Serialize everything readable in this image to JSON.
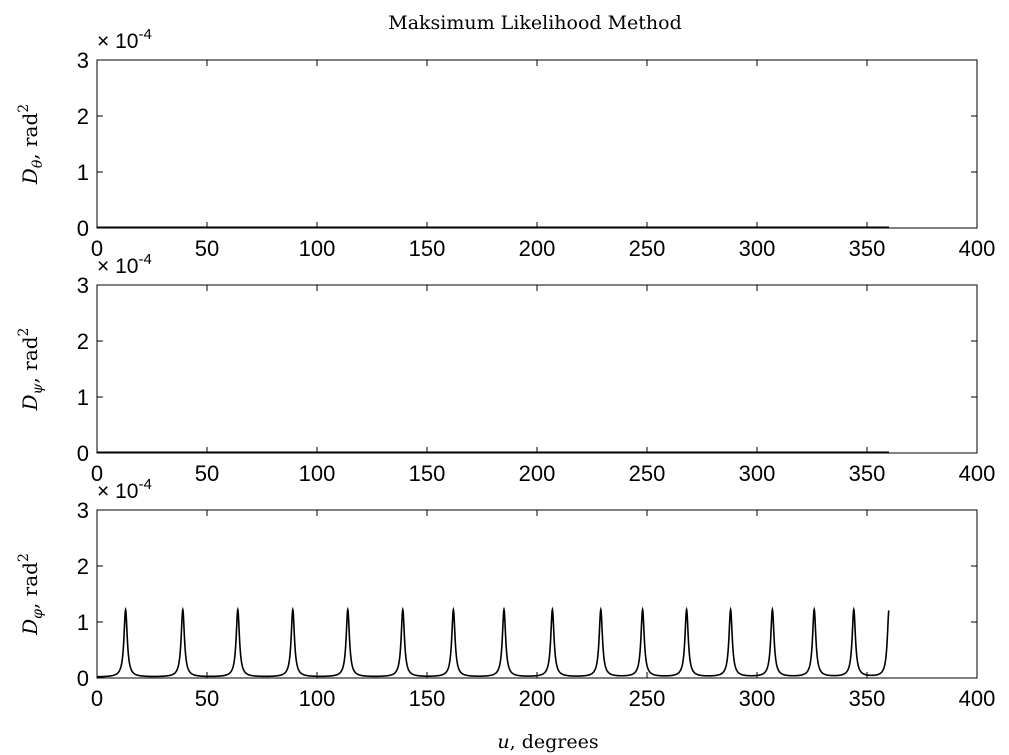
{
  "chart_data": {
    "type": "line",
    "title": "Maksimum Likelihood  Method",
    "xlabel": "u, degrees",
    "colors": {
      "line": "#000000",
      "axes": "#000000",
      "background": "#ffffff"
    },
    "panels": [
      {
        "ylabel": "D_θ , rad²",
        "ylabel_symbol": "D",
        "ylabel_subscript": "θ",
        "ylabel_unit": ", rad",
        "ylabel_exp": "2",
        "exponent_label": "× 10",
        "exponent_power": "-4",
        "xlim": [
          0,
          400
        ],
        "ylim": [
          0,
          3
        ],
        "x_ticks": [
          "0",
          "50",
          "100",
          "150",
          "200",
          "250",
          "300",
          "350",
          "400"
        ],
        "y_ticks": [
          "0",
          "1",
          "2",
          "3"
        ],
        "series": [
          {
            "x": [
              0,
              360
            ],
            "y": [
              0,
              0
            ]
          }
        ]
      },
      {
        "ylabel": "D_ψ , rad²",
        "ylabel_symbol": "D",
        "ylabel_subscript": "ψ",
        "ylabel_unit": ", rad",
        "ylabel_exp": "2",
        "exponent_label": "× 10",
        "exponent_power": "-4",
        "xlim": [
          0,
          400
        ],
        "ylim": [
          0,
          3
        ],
        "x_ticks": [
          "0",
          "50",
          "100",
          "150",
          "200",
          "250",
          "300",
          "350",
          "400"
        ],
        "y_ticks": [
          "0",
          "1",
          "2",
          "3"
        ],
        "series": [
          {
            "x": [
              0,
              360
            ],
            "y": [
              0,
              0
            ]
          }
        ]
      },
      {
        "ylabel": "D_φ , rad²",
        "ylabel_symbol": "D",
        "ylabel_subscript": "φ",
        "ylabel_unit": ", rad",
        "ylabel_exp": "2",
        "exponent_label": "× 10",
        "exponent_power": "-4",
        "xlim": [
          0,
          400
        ],
        "ylim": [
          0,
          3
        ],
        "x_ticks": [
          "0",
          "50",
          "100",
          "150",
          "200",
          "250",
          "300",
          "350",
          "400"
        ],
        "y_ticks": [
          "0",
          "1",
          "2",
          "3"
        ],
        "series": [
          {
            "x": [
              0,
              360
            ],
            "y": [
              0,
              0
            ]
          }
        ],
        "peak_x": [
          13,
          39,
          64,
          89,
          114,
          139,
          162,
          185,
          207,
          229,
          248,
          268,
          288,
          307,
          326,
          344,
          360
        ],
        "peak_width": 0.9,
        "baseline": 0.015,
        "ymax_clip": 3
      }
    ]
  }
}
